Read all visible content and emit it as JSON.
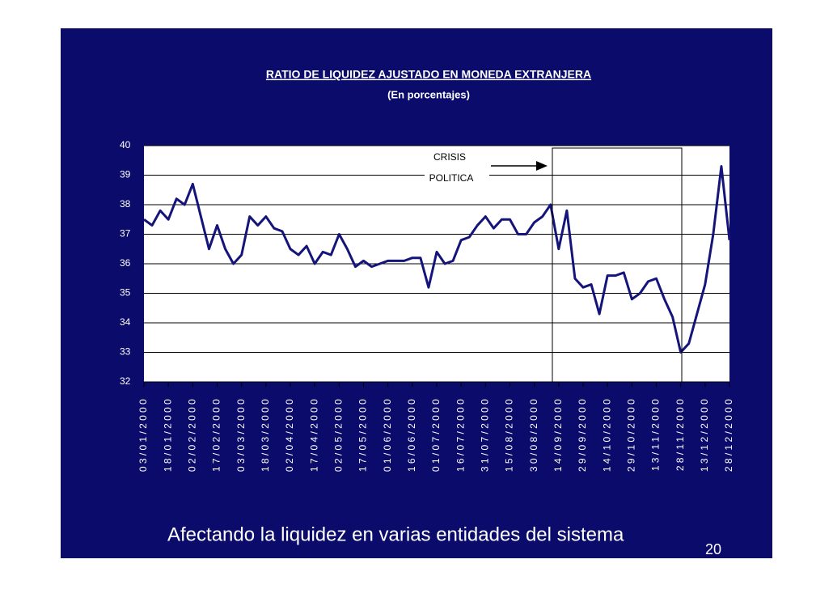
{
  "chart_data": {
    "type": "line",
    "title": "RATIO DE LIQUIDEZ AJUSTADO EN MONEDA EXTRANJERA",
    "subtitle": "(En porcentajes)",
    "annotation": [
      "CRISIS",
      "POLITICA"
    ],
    "categories": [
      "03/01/2000",
      null,
      null,
      "18/01/2000",
      null,
      null,
      "02/02/2000",
      null,
      null,
      "17/02/2000",
      null,
      null,
      "03/03/2000",
      null,
      null,
      "18/03/2000",
      null,
      null,
      "02/04/2000",
      null,
      null,
      "17/04/2000",
      null,
      null,
      "02/05/2000",
      null,
      null,
      "17/05/2000",
      null,
      null,
      "01/06/2000",
      null,
      null,
      "16/06/2000",
      null,
      null,
      "01/07/2000",
      null,
      null,
      "16/07/2000",
      null,
      null,
      "31/07/2000",
      null,
      null,
      "15/08/2000",
      null,
      null,
      "30/08/2000",
      null,
      null,
      "14/09/2000",
      null,
      null,
      "29/09/2000",
      null,
      null,
      "14/10/2000",
      null,
      null,
      "29/10/2000",
      null,
      null,
      "13/11/2000",
      null,
      null,
      "28/11/2000",
      null,
      null,
      "13/12/2000",
      null,
      null,
      "28/12/2000"
    ],
    "series": [
      {
        "color": "#14147a",
        "values": [
          37.5,
          37.3,
          37.8,
          37.5,
          38.2,
          38.0,
          38.7,
          37.6,
          36.5,
          37.3,
          36.5,
          36.0,
          36.3,
          37.6,
          37.3,
          37.6,
          37.2,
          37.1,
          36.5,
          36.3,
          36.6,
          36.0,
          36.4,
          36.3,
          37.0,
          36.5,
          35.9,
          36.1,
          35.9,
          36.0,
          36.1,
          36.1,
          36.1,
          36.2,
          36.2,
          35.2,
          36.4,
          36.0,
          36.1,
          36.8,
          36.9,
          37.3,
          37.6,
          37.2,
          37.5,
          37.5,
          37.0,
          37.0,
          37.4,
          37.6,
          38.0,
          36.5,
          37.8,
          35.5,
          35.2,
          35.3,
          34.3,
          35.6,
          35.6,
          35.7,
          34.8,
          35.0,
          35.4,
          35.5,
          34.8,
          34.2,
          33.0,
          33.3,
          34.3,
          35.3,
          37.0,
          39.3,
          36.8
        ]
      }
    ],
    "ylim": [
      32,
      40
    ],
    "yticks": [
      32,
      33,
      34,
      35,
      36,
      37,
      38,
      39,
      40
    ],
    "grid": true
  },
  "footer": "Afectando la liquidez en varias entidades del sistema",
  "page_number": "20"
}
